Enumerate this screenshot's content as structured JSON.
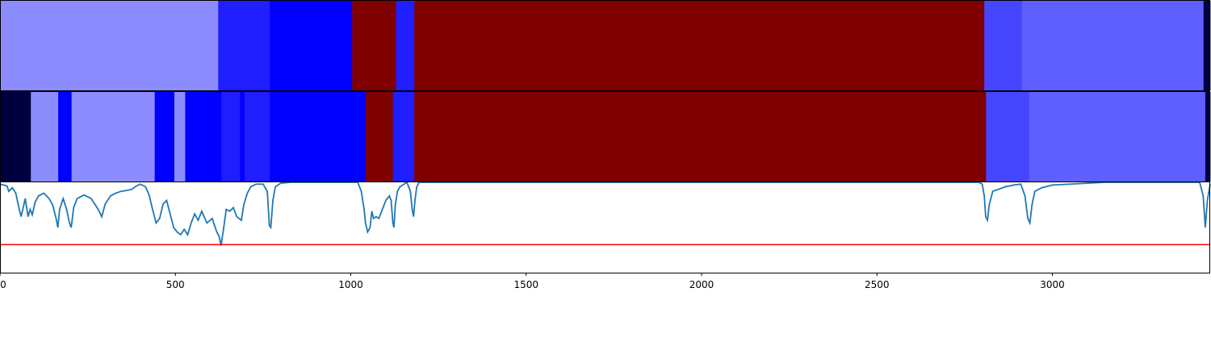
{
  "chart_data": {
    "type": "heatmap",
    "title": "",
    "xlabel": "",
    "ylabel": "",
    "xlim": [
      0,
      3450
    ],
    "x_ticks": [
      "0",
      "500",
      "1000",
      "1500",
      "2000",
      "2500",
      "3000"
    ],
    "x_tick_values": [
      0,
      500,
      1000,
      1500,
      2000,
      2500,
      3000
    ],
    "segment_tracks": [
      {
        "name": "",
        "segments": [
          {
            "start": 0,
            "end": 622,
            "color": "#8c8cff"
          },
          {
            "start": 622,
            "end": 769,
            "color": "#1e1eff"
          },
          {
            "start": 769,
            "end": 1004,
            "color": "#0000ff"
          },
          {
            "start": 1004,
            "end": 1129,
            "color": "#800000"
          },
          {
            "start": 1129,
            "end": 1181,
            "color": "#1e1eff"
          },
          {
            "start": 1181,
            "end": 2806,
            "color": "#800000"
          },
          {
            "start": 2806,
            "end": 2913,
            "color": "#4646ff"
          },
          {
            "start": 2913,
            "end": 3431,
            "color": "#5f5fff"
          },
          {
            "start": 3431,
            "end": 3450,
            "color": "#000040"
          }
        ]
      },
      {
        "name": "",
        "segments": [
          {
            "start": 0,
            "end": 88,
            "color": "#000040"
          },
          {
            "start": 88,
            "end": 166,
            "color": "#8c8cff"
          },
          {
            "start": 166,
            "end": 204,
            "color": "#0000ff"
          },
          {
            "start": 204,
            "end": 441,
            "color": "#8c8cff"
          },
          {
            "start": 441,
            "end": 497,
            "color": "#0000ff"
          },
          {
            "start": 497,
            "end": 528,
            "color": "#8c8cff"
          },
          {
            "start": 528,
            "end": 631,
            "color": "#0000ff"
          },
          {
            "start": 631,
            "end": 684,
            "color": "#1e1eff"
          },
          {
            "start": 684,
            "end": 697,
            "color": "#0000ff"
          },
          {
            "start": 697,
            "end": 769,
            "color": "#1e1eff"
          },
          {
            "start": 769,
            "end": 1043,
            "color": "#0000ff"
          },
          {
            "start": 1043,
            "end": 1120,
            "color": "#800000"
          },
          {
            "start": 1120,
            "end": 1181,
            "color": "#1e1eff"
          },
          {
            "start": 1181,
            "end": 2811,
            "color": "#800000"
          },
          {
            "start": 2811,
            "end": 2934,
            "color": "#4646ff"
          },
          {
            "start": 2934,
            "end": 3436,
            "color": "#5f5fff"
          },
          {
            "start": 3436,
            "end": 3450,
            "color": "#000040"
          }
        ]
      }
    ],
    "line_panel": {
      "ylim": [
        -1.0,
        0.0
      ],
      "line_color": "#1f77b4",
      "threshold": -0.69,
      "threshold_color": "#ff0000",
      "points": [
        [
          0,
          -0.02
        ],
        [
          20,
          -0.04
        ],
        [
          25,
          -0.1
        ],
        [
          35,
          -0.06
        ],
        [
          45,
          -0.12
        ],
        [
          55,
          -0.3
        ],
        [
          60,
          -0.38
        ],
        [
          65,
          -0.3
        ],
        [
          72,
          -0.18
        ],
        [
          80,
          -0.38
        ],
        [
          86,
          -0.3
        ],
        [
          92,
          -0.36
        ],
        [
          100,
          -0.22
        ],
        [
          110,
          -0.15
        ],
        [
          125,
          -0.12
        ],
        [
          140,
          -0.18
        ],
        [
          150,
          -0.25
        ],
        [
          160,
          -0.4
        ],
        [
          165,
          -0.5
        ],
        [
          170,
          -0.3
        ],
        [
          180,
          -0.18
        ],
        [
          190,
          -0.3
        ],
        [
          198,
          -0.45
        ],
        [
          203,
          -0.5
        ],
        [
          210,
          -0.28
        ],
        [
          220,
          -0.18
        ],
        [
          240,
          -0.14
        ],
        [
          260,
          -0.18
        ],
        [
          280,
          -0.3
        ],
        [
          290,
          -0.38
        ],
        [
          300,
          -0.24
        ],
        [
          315,
          -0.15
        ],
        [
          330,
          -0.12
        ],
        [
          345,
          -0.1
        ],
        [
          360,
          -0.09
        ],
        [
          375,
          -0.08
        ],
        [
          385,
          -0.05
        ],
        [
          400,
          -0.02
        ],
        [
          415,
          -0.05
        ],
        [
          425,
          -0.14
        ],
        [
          435,
          -0.3
        ],
        [
          445,
          -0.45
        ],
        [
          455,
          -0.4
        ],
        [
          465,
          -0.24
        ],
        [
          475,
          -0.2
        ],
        [
          485,
          -0.35
        ],
        [
          495,
          -0.5
        ],
        [
          505,
          -0.55
        ],
        [
          515,
          -0.58
        ],
        [
          525,
          -0.52
        ],
        [
          535,
          -0.58
        ],
        [
          545,
          -0.45
        ],
        [
          555,
          -0.35
        ],
        [
          565,
          -0.42
        ],
        [
          575,
          -0.32
        ],
        [
          590,
          -0.45
        ],
        [
          605,
          -0.4
        ],
        [
          618,
          -0.55
        ],
        [
          625,
          -0.6
        ],
        [
          630,
          -0.7
        ],
        [
          636,
          -0.55
        ],
        [
          645,
          -0.3
        ],
        [
          655,
          -0.32
        ],
        [
          665,
          -0.28
        ],
        [
          675,
          -0.38
        ],
        [
          688,
          -0.42
        ],
        [
          695,
          -0.25
        ],
        [
          705,
          -0.12
        ],
        [
          715,
          -0.05
        ],
        [
          730,
          -0.02
        ],
        [
          750,
          -0.02
        ],
        [
          762,
          -0.1
        ],
        [
          768,
          -0.48
        ],
        [
          772,
          -0.5
        ],
        [
          778,
          -0.2
        ],
        [
          785,
          -0.05
        ],
        [
          800,
          -0.01
        ],
        [
          830,
          0.0
        ],
        [
          1020,
          0.0
        ],
        [
          1030,
          -0.1
        ],
        [
          1038,
          -0.3
        ],
        [
          1042,
          -0.45
        ],
        [
          1048,
          -0.55
        ],
        [
          1055,
          -0.5
        ],
        [
          1060,
          -0.32
        ],
        [
          1065,
          -0.4
        ],
        [
          1072,
          -0.38
        ],
        [
          1080,
          -0.4
        ],
        [
          1090,
          -0.3
        ],
        [
          1100,
          -0.2
        ],
        [
          1110,
          -0.15
        ],
        [
          1115,
          -0.2
        ],
        [
          1120,
          -0.45
        ],
        [
          1123,
          -0.5
        ],
        [
          1127,
          -0.25
        ],
        [
          1133,
          -0.1
        ],
        [
          1140,
          -0.05
        ],
        [
          1160,
          0.0
        ],
        [
          1170,
          -0.1
        ],
        [
          1175,
          -0.3
        ],
        [
          1179,
          -0.38
        ],
        [
          1183,
          -0.2
        ],
        [
          1188,
          -0.05
        ],
        [
          1195,
          0.0
        ],
        [
          2790,
          0.0
        ],
        [
          2800,
          -0.02
        ],
        [
          2806,
          -0.15
        ],
        [
          2810,
          -0.38
        ],
        [
          2815,
          -0.42
        ],
        [
          2820,
          -0.25
        ],
        [
          2830,
          -0.1
        ],
        [
          2845,
          -0.08
        ],
        [
          2865,
          -0.05
        ],
        [
          2890,
          -0.03
        ],
        [
          2910,
          -0.02
        ],
        [
          2922,
          -0.15
        ],
        [
          2930,
          -0.4
        ],
        [
          2936,
          -0.45
        ],
        [
          2942,
          -0.25
        ],
        [
          2950,
          -0.1
        ],
        [
          2970,
          -0.06
        ],
        [
          3000,
          -0.03
        ],
        [
          3050,
          -0.02
        ],
        [
          3150,
          0.0
        ],
        [
          3420,
          0.0
        ],
        [
          3430,
          -0.15
        ],
        [
          3436,
          -0.5
        ],
        [
          3442,
          -0.2
        ],
        [
          3450,
          -0.02
        ]
      ]
    }
  }
}
